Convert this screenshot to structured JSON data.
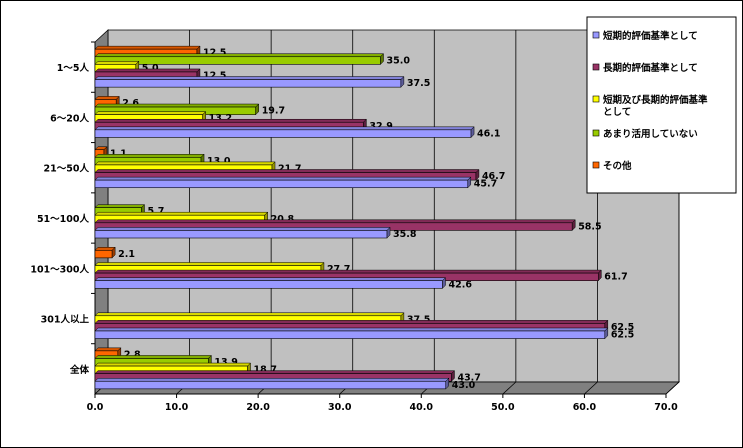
{
  "chart_data": {
    "type": "bar",
    "orientation": "horizontal",
    "categories": [
      "1～5人",
      "6～20人",
      "21～50人",
      "51～100人",
      "101～300人",
      "301人以上",
      "全体"
    ],
    "series": [
      {
        "name": "短期的評価基準として",
        "color": "#9999ff",
        "values": [
          37.5,
          46.1,
          45.7,
          35.8,
          42.6,
          62.5,
          43.0
        ]
      },
      {
        "name": "長期的評価基準として",
        "color": "#993366",
        "values": [
          12.5,
          32.9,
          46.7,
          58.5,
          61.7,
          62.5,
          43.7
        ]
      },
      {
        "name": "短期及び長期的評価基準として",
        "color": "#ffff00",
        "values": [
          5.0,
          13.2,
          21.7,
          20.8,
          27.7,
          37.5,
          18.7
        ]
      },
      {
        "name": "あまり活用していない",
        "color": "#99cc00",
        "values": [
          35.0,
          19.7,
          13.0,
          5.7,
          0.0,
          0.0,
          13.9
        ]
      },
      {
        "name": "その他",
        "color": "#ff6600",
        "values": [
          12.5,
          2.6,
          1.1,
          0.0,
          2.1,
          0.0,
          2.8
        ]
      }
    ],
    "value_labels": [
      [
        "37.5",
        "46.1",
        "45.7",
        "35.8",
        "42.6",
        "62.5",
        "43.0"
      ],
      [
        "12.5",
        "32.9",
        "46.7",
        "58.5",
        "61.7",
        "62.5",
        "43.7"
      ],
      [
        "5.0",
        "13.2",
        "21.7",
        "20.8",
        "27.7",
        "37.5",
        "18.7"
      ],
      [
        "35.0",
        "19.7",
        "13.0",
        "5.7",
        "",
        "",
        "13.9"
      ],
      [
        "12.5",
        "2.6",
        "1.1",
        "",
        "2.1",
        "",
        "2.8"
      ]
    ],
    "xlim": [
      0,
      70
    ],
    "xticks": [
      "0.0",
      "10.0",
      "20.0",
      "30.0",
      "40.0",
      "50.0",
      "60.0",
      "70.0"
    ],
    "grid": true,
    "legend_position": "right",
    "wall_color": "#c0c0c0"
  }
}
